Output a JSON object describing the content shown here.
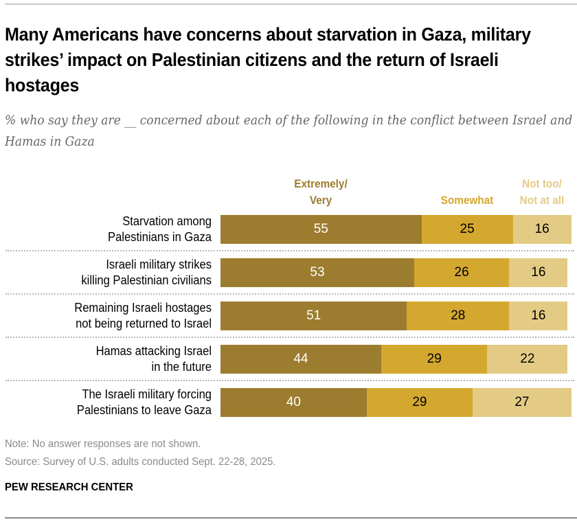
{
  "header": {
    "title": "Many Americans have concerns about starvation in Gaza, military strikes’ impact on Palestinian citizens and the return of Israeli hostages",
    "subtitle": "% who say they are __ concerned about each of the following in the conflict between Israel and Hamas in Gaza"
  },
  "chart_data": {
    "type": "bar",
    "orientation": "horizontal",
    "stacked": true,
    "title": "Many Americans have concerns about starvation in Gaza, military strikes’ impact on Palestinian citizens and the return of Israeli hostages",
    "subtitle": "% who say they are __ concerned about each of the following in the conflict between Israel and Hamas in Gaza",
    "xlabel": "",
    "ylabel": "",
    "xlim": [
      0,
      100
    ],
    "grid": false,
    "legend_placement": "top",
    "categories": [
      "Starvation among\nPalestinians in Gaza",
      "Israeli military strikes\nkilling Palestinian civilians",
      "Remaining Israeli hostages\nnot being returned to Israel",
      "Hamas attacking Israel\nin the future",
      "The Israeli military forcing\nPalestinians to leave Gaza"
    ],
    "series": [
      {
        "name": "Extremely/\nVery",
        "color": "#9c7c2e",
        "label_color": "#ffffff",
        "values": [
          55,
          53,
          51,
          44,
          40
        ]
      },
      {
        "name": "Somewhat",
        "color": "#d4a72f",
        "label_color": "#000000",
        "values": [
          25,
          26,
          28,
          29,
          29
        ]
      },
      {
        "name": "Not too/\nNot at all",
        "color": "#e3cb85",
        "label_color": "#000000",
        "values": [
          16,
          16,
          16,
          22,
          27
        ]
      }
    ]
  },
  "footer": {
    "note": "Note: No answer responses are not shown.",
    "source": "Source: Survey of U.S. adults conducted Sept. 22-28, 2025.",
    "brand": "PEW RESEARCH CENTER"
  }
}
